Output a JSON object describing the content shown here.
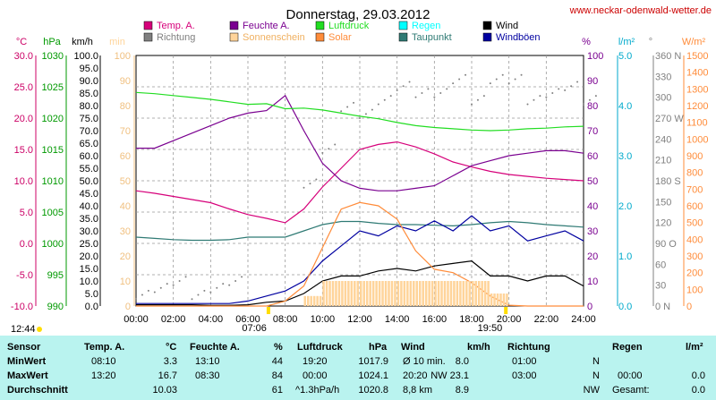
{
  "header": {
    "title": "Donnerstag, 29.03.2012",
    "site": "www.neckar-odenwald-wetter.de"
  },
  "legend": [
    {
      "label": "Temp. A.",
      "color": "#d6007a"
    },
    {
      "label": "Feuchte A.",
      "color": "#7a0090"
    },
    {
      "label": "Luftdruck",
      "color": "#22dd22"
    },
    {
      "label": "Regen",
      "color": "#00ffff"
    },
    {
      "label": "Wind",
      "color": "#000000"
    },
    {
      "label": "Richtung",
      "color": "#808080"
    },
    {
      "label": "Sonnenschein",
      "color": "#ffd49a"
    },
    {
      "label": "Solar",
      "color": "#ff8c3a"
    },
    {
      "label": "Taupunkt",
      "color": "#2f7a74"
    },
    {
      "label": "Windböen",
      "color": "#0000a0"
    }
  ],
  "axis_units": {
    "temp": "°C",
    "pressure": "hPa",
    "wind": "km/h",
    "sunshine": "min",
    "humidity": "%",
    "rain": "l/m²",
    "direction": "°",
    "solar": "W/m²"
  },
  "axis_ticks": {
    "temp": [
      "30.0",
      "25.0",
      "20.0",
      "15.0",
      "10.0",
      "5.0",
      "0.0",
      "-5.0",
      "-10.0"
    ],
    "pressure": [
      "1030",
      "1025",
      "1020",
      "1015",
      "1010",
      "1005",
      "1000",
      "995",
      "990"
    ],
    "wind": [
      "100.0",
      "95.0",
      "90.0",
      "85.0",
      "80.0",
      "75.0",
      "70.0",
      "65.0",
      "60.0",
      "55.0",
      "50.0",
      "45.0",
      "40.0",
      "35.0",
      "30.0",
      "25.0",
      "20.0",
      "15.0",
      "10.0",
      "5.0",
      "0.0"
    ],
    "sunshine": [
      "100",
      "90",
      "80",
      "70",
      "60",
      "50",
      "40",
      "30",
      "20",
      "10",
      "0"
    ],
    "humidity": [
      "100",
      "90",
      "80",
      "70",
      "60",
      "50",
      "40",
      "30",
      "20",
      "10",
      "0"
    ],
    "rain": [
      "5.0",
      "4.0",
      "3.0",
      "2.0",
      "1.0",
      "0.0"
    ],
    "direction": [
      "360 N",
      "330",
      "300",
      "270 W",
      "240",
      "210",
      "180 S",
      "150",
      "120",
      "90 O",
      "60",
      "30",
      "0 N"
    ],
    "solar": [
      "1500",
      "1400",
      "1300",
      "1200",
      "1100",
      "1000",
      "900",
      "800",
      "700",
      "600",
      "500",
      "400",
      "300",
      "200",
      "100",
      "0"
    ],
    "time": [
      "00:00",
      "02:00",
      "04:00",
      "06:00",
      "08:00",
      "10:00",
      "12:00",
      "14:00",
      "16:00",
      "18:00",
      "20:00",
      "22:00",
      "24:00"
    ]
  },
  "markers": {
    "sunrise": "07:06",
    "sunset": "19:50",
    "daylength": "12:44"
  },
  "stats": {
    "headers": {
      "sensor": "Sensor",
      "temp": "Temp. A.",
      "temp_unit": "°C",
      "hum": "Feuchte A.",
      "hum_unit": "%",
      "press": "Luftdruck",
      "press_unit": "hPa",
      "wind": "Wind",
      "wind_unit": "km/h",
      "dir": "Richtung",
      "rain": "Regen",
      "rain_unit": "l/m²"
    },
    "rows": [
      {
        "label": "MinWert",
        "temp_time": "08:10",
        "temp_val": "3.3",
        "hum_time": "13:10",
        "hum_val": "44",
        "press_time": "19:20",
        "press_val": "1017.9",
        "wind_time": "Ø 10 min.",
        "wind_val": "8.0",
        "dir_time": "01:00",
        "dir_val": "N",
        "rain_time": "",
        "rain_val": ""
      },
      {
        "label": "MaxWert",
        "temp_time": "13:20",
        "temp_val": "16.7",
        "hum_time": "08:30",
        "hum_val": "84",
        "press_time": "00:00",
        "press_val": "1024.1",
        "wind_time": "20:20",
        "wind_val": "NW 23.1",
        "dir_time": "03:00",
        "dir_val": "N",
        "rain_time": "00:00",
        "rain_val": "0.0"
      },
      {
        "label": "Durchschnitt",
        "temp_time": "",
        "temp_val": "10.03",
        "hum_time": "",
        "hum_val": "61",
        "press_time": "^1.3hPa/h",
        "press_val": "1020.8",
        "wind_time": "8,8 km",
        "wind_val": "8.9",
        "dir_time": "",
        "dir_val": "NW",
        "rain_time": "Gesamt:",
        "rain_val": "0.0"
      }
    ]
  },
  "chart_data": {
    "type": "line",
    "title": "Donnerstag, 29.03.2012",
    "x_range": [
      "00:00",
      "24:00"
    ],
    "x": [
      "00:00",
      "01:00",
      "02:00",
      "03:00",
      "04:00",
      "05:00",
      "06:00",
      "07:00",
      "08:00",
      "09:00",
      "10:00",
      "11:00",
      "12:00",
      "13:00",
      "14:00",
      "15:00",
      "16:00",
      "17:00",
      "18:00",
      "19:00",
      "20:00",
      "21:00",
      "22:00",
      "23:00",
      "24:00"
    ],
    "y_axes": {
      "temp": {
        "unit": "°C",
        "range": [
          -10,
          30
        ]
      },
      "pressure": {
        "unit": "hPa",
        "range": [
          990,
          1030
        ]
      },
      "wind": {
        "unit": "km/h",
        "range": [
          0,
          100
        ]
      },
      "humidity": {
        "unit": "%",
        "range": [
          0,
          100
        ]
      },
      "solar": {
        "unit": "W/m²",
        "range": [
          0,
          1500
        ]
      }
    },
    "series": [
      {
        "name": "Temp. A.",
        "axis": "temp",
        "color": "#d6007a",
        "values": [
          8.4,
          8.0,
          7.5,
          7.0,
          6.5,
          5.5,
          4.6,
          4.0,
          3.3,
          5.5,
          9.0,
          12.0,
          15.0,
          15.8,
          16.2,
          15.4,
          14.3,
          13.0,
          12.2,
          11.5,
          11.0,
          10.7,
          10.4,
          10.2,
          10.0
        ]
      },
      {
        "name": "Feuchte A.",
        "axis": "humidity",
        "color": "#7a0090",
        "values": [
          63,
          63,
          66,
          69,
          72,
          75,
          77,
          78,
          84,
          70,
          57,
          50,
          47,
          46,
          46,
          47,
          48,
          52,
          56,
          58,
          60,
          61,
          62,
          62,
          61
        ]
      },
      {
        "name": "Luftdruck",
        "axis": "pressure",
        "color": "#22dd22",
        "values": [
          1024.1,
          1023.9,
          1023.6,
          1023.3,
          1023.0,
          1022.6,
          1022.2,
          1022.3,
          1021.5,
          1021.6,
          1021.3,
          1020.8,
          1020.3,
          1019.9,
          1019.3,
          1018.8,
          1018.5,
          1018.3,
          1018.1,
          1018.0,
          1018.1,
          1018.3,
          1018.4,
          1018.6,
          1018.7
        ]
      },
      {
        "name": "Taupunkt",
        "axis": "temp",
        "color": "#2f7a74",
        "values": [
          1.0,
          0.8,
          0.6,
          0.5,
          0.5,
          0.6,
          1.0,
          1.0,
          1.0,
          2.0,
          3.0,
          3.5,
          3.5,
          3.2,
          3.0,
          3.0,
          2.9,
          2.8,
          3.0,
          3.3,
          3.5,
          3.3,
          3.0,
          2.8,
          2.6
        ]
      },
      {
        "name": "Wind",
        "axis": "wind",
        "color": "#000000",
        "values": [
          0.5,
          0.5,
          0.5,
          0.5,
          0.3,
          0.3,
          0.5,
          1.5,
          2,
          5,
          10,
          12,
          12,
          14,
          15,
          14,
          16,
          17,
          18,
          12,
          12,
          10,
          12,
          12,
          8
        ]
      },
      {
        "name": "Windböen",
        "axis": "wind",
        "color": "#0000a0",
        "values": [
          1,
          1,
          1,
          1,
          1,
          1,
          2,
          4,
          6,
          10,
          18,
          24,
          30,
          28,
          32,
          30,
          34,
          30,
          36,
          30,
          32,
          26,
          28,
          30,
          26
        ]
      },
      {
        "name": "Solar",
        "axis": "solar",
        "color": "#ff8c3a",
        "values": [
          0,
          0,
          0,
          0,
          0,
          0,
          0,
          0,
          30,
          120,
          350,
          580,
          620,
          600,
          520,
          330,
          220,
          200,
          140,
          60,
          5,
          0,
          0,
          0,
          0
        ]
      },
      {
        "name": "Sonnenschein",
        "axis": "sunshine",
        "color": "#ffd49a",
        "values": [
          0,
          0,
          0,
          0,
          0,
          0,
          0,
          0,
          0,
          4,
          10,
          10,
          10,
          10,
          10,
          10,
          10,
          10,
          10,
          5,
          0,
          0,
          0,
          0,
          0
        ]
      },
      {
        "name": "Richtung",
        "axis": "direction",
        "color": "#808080",
        "values": [
          20,
          20,
          20,
          20,
          20,
          20,
          null,
          null,
          null,
          180,
          220,
          270,
          280,
          290,
          300,
          310,
          300,
          310,
          300,
          320,
          310,
          300,
          300,
          300,
          300
        ]
      }
    ]
  }
}
